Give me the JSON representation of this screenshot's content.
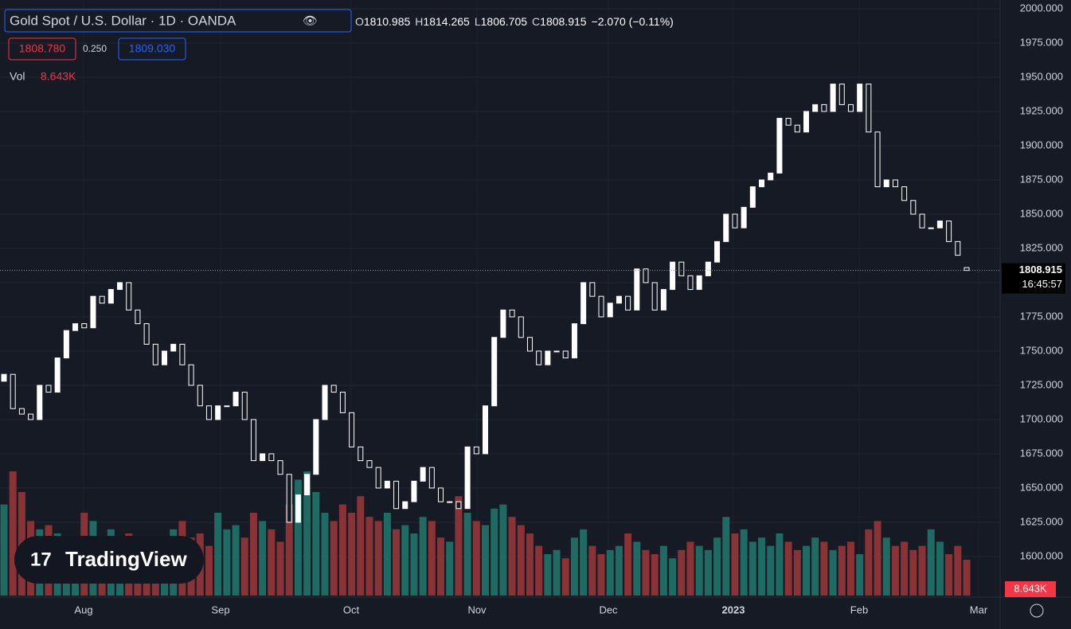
{
  "chart_data": {
    "type": "candlestick",
    "symbol": "Gold Spot / U.S. Dollar · 1D · OANDA",
    "header": {
      "o": "O",
      "h": "H",
      "l": "L",
      "c": "C",
      "high": 1814.265,
      "low": 1806.705,
      "change": "−2.070 (−0.11%)"
    },
    "bid": "1808.780",
    "spread": "0.250",
    "ask": "1809.030",
    "volume_title": "Vol",
    "volume_label": "8.643K",
    "countdown": "16:45:57",
    "logo": "TradingView",
    "x_labels": [
      "Aug",
      "Sep",
      "Oct",
      "Nov",
      "Dec",
      "2023",
      "Feb",
      "Mar"
    ],
    "open": [
      1728,
      1733,
      1708,
      1704,
      1700,
      1725,
      1720,
      1745,
      1765,
      1770,
      1767,
      1790,
      1785,
      1795,
      1800,
      1780,
      1770,
      1755,
      1740,
      1750,
      1755,
      1740,
      1725,
      1710,
      1700,
      1710,
      1710,
      1720,
      1700,
      1670,
      1675,
      1670,
      1660,
      1625,
      1645,
      1660,
      1700,
      1725,
      1720,
      1705,
      1680,
      1670,
      1665,
      1650,
      1655,
      1635,
      1640,
      1655,
      1665,
      1650,
      1640,
      1640,
      1635,
      1680,
      1675,
      1710,
      1760,
      1780,
      1775,
      1760,
      1750,
      1740,
      1750,
      1750,
      1745,
      1770,
      1800,
      1790,
      1775,
      1785,
      1790,
      1780,
      1810,
      1800,
      1780,
      1795,
      1815,
      1805,
      1795,
      1805,
      1815,
      1830,
      1850,
      1840,
      1855,
      1870,
      1875,
      1880,
      1920,
      1915,
      1910,
      1925,
      1930,
      1925,
      1945,
      1930,
      1925,
      1945,
      1910,
      1870,
      1875,
      1870,
      1860,
      1850,
      1840,
      1840,
      1845,
      1830,
      1810.985
    ],
    "close": [
      1733,
      1708,
      1704,
      1700,
      1725,
      1720,
      1745,
      1765,
      1770,
      1767,
      1790,
      1785,
      1795,
      1800,
      1780,
      1770,
      1755,
      1740,
      1750,
      1755,
      1740,
      1725,
      1710,
      1700,
      1710,
      1710,
      1720,
      1700,
      1670,
      1675,
      1670,
      1660,
      1625,
      1645,
      1660,
      1700,
      1725,
      1720,
      1705,
      1680,
      1670,
      1665,
      1650,
      1655,
      1635,
      1640,
      1655,
      1665,
      1650,
      1640,
      1640,
      1635,
      1680,
      1675,
      1710,
      1760,
      1780,
      1775,
      1760,
      1750,
      1740,
      1750,
      1750,
      1745,
      1770,
      1800,
      1790,
      1775,
      1785,
      1790,
      1780,
      1810,
      1800,
      1780,
      1795,
      1815,
      1805,
      1795,
      1805,
      1815,
      1830,
      1850,
      1840,
      1855,
      1870,
      1875,
      1880,
      1920,
      1915,
      1910,
      1925,
      1930,
      1925,
      1945,
      1930,
      1925,
      1945,
      1910,
      1870,
      1875,
      1870,
      1860,
      1850,
      1840,
      1840,
      1845,
      1830,
      1820,
      1808.915
    ],
    "volume": [
      22,
      30,
      25,
      18,
      16,
      17,
      15,
      14,
      12,
      20,
      18,
      14,
      16,
      13,
      15,
      12,
      14,
      12,
      13,
      16,
      18,
      14,
      15,
      12,
      20,
      16,
      17,
      14,
      20,
      18,
      16,
      13,
      22,
      28,
      30,
      25,
      20,
      18,
      22,
      20,
      24,
      19,
      18,
      20,
      16,
      17,
      15,
      19,
      18,
      14,
      13,
      24,
      20,
      18,
      17,
      21,
      22,
      19,
      17,
      15,
      12,
      10,
      11,
      9,
      14,
      16,
      12,
      10,
      11,
      12,
      15,
      13,
      11,
      10,
      12,
      9,
      11,
      13,
      12,
      11,
      14,
      19,
      15,
      16,
      13,
      14,
      12,
      15,
      13,
      11,
      12,
      14,
      13,
      11,
      12,
      13,
      10,
      16,
      18,
      14,
      12,
      13,
      11,
      12,
      16,
      13,
      10,
      12,
      8.643
    ],
    "up_color": "#ffffff",
    "down_color": "#ffffff",
    "volume_up_color": "#1f6b63",
    "volume_down_color": "#8a3336",
    "ylim": [
      1570.3,
      2006.4
    ],
    "yticks": [
      {
        "value": 1600,
        "label": "1600.000"
      },
      {
        "value": 1625,
        "label": "1625.000"
      },
      {
        "value": 1650,
        "label": "1650.000"
      },
      {
        "value": 1675,
        "label": "1675.000"
      },
      {
        "value": 1700,
        "label": "1700.000"
      },
      {
        "value": 1725,
        "label": "1725.000"
      },
      {
        "value": 1750,
        "label": "1750.000"
      },
      {
        "value": 1775,
        "label": "1775.000"
      },
      {
        "value": 1800,
        "label": "1800.000"
      },
      {
        "value": 1825,
        "label": "1825.000"
      },
      {
        "value": 1850,
        "label": "1850.000"
      },
      {
        "value": 1875,
        "label": "1875.000"
      },
      {
        "value": 1900,
        "label": "1900.000"
      },
      {
        "value": 1925,
        "label": "1925.000"
      },
      {
        "value": 1950,
        "label": "1950.000"
      },
      {
        "value": 1975,
        "label": "1975.000"
      },
      {
        "value": 2000,
        "label": "2000.000"
      }
    ],
    "grid": true
  }
}
